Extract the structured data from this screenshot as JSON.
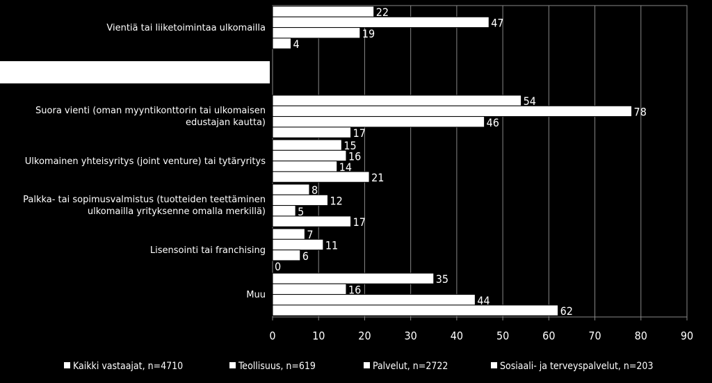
{
  "chart_data": {
    "type": "bar",
    "orientation": "horizontal",
    "categories": [
      "Vientiä tai liiketoimintaa ulkomailla",
      null,
      "Suora vienti (oman myyntikonttorin tai ulkomaisen edustajan kautta)",
      "Ulkomainen yhteisyritys (joint venture) tai tytäryritys",
      "Palkka- tai sopimusvalmistus (tuotteiden teettäminen ulkomailla yrityksenne omalla merkillä)",
      "Lisensointi tai franchising",
      "Muu"
    ],
    "series": [
      {
        "name": "Kaikki vastaajat, n=4710",
        "color": "#ffffff",
        "values": [
          22,
          null,
          54,
          15,
          8,
          7,
          35
        ]
      },
      {
        "name": "Teollisuus, n=619",
        "color": "#ffffff",
        "values": [
          47,
          null,
          78,
          16,
          12,
          11,
          16
        ]
      },
      {
        "name": "Palvelut, n=2722",
        "color": "#ffffff",
        "values": [
          19,
          null,
          46,
          14,
          5,
          6,
          44
        ]
      },
      {
        "name": "Sosiaali- ja terveyspalvelut, n=203",
        "color": "#ffffff",
        "values": [
          4,
          null,
          17,
          21,
          17,
          0,
          62
        ]
      }
    ],
    "xlim": [
      0,
      90
    ],
    "xticks": [
      0,
      10,
      20,
      30,
      40,
      50,
      60,
      70,
      80,
      90
    ],
    "grid": true,
    "legend": "bottom"
  }
}
